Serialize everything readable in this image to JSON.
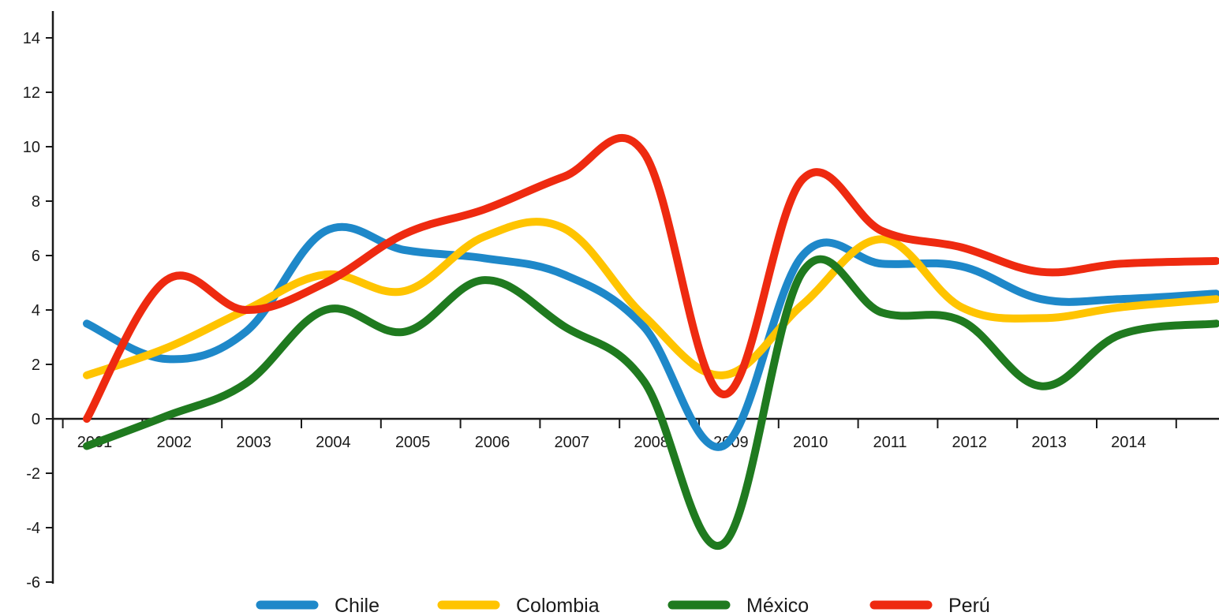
{
  "chart_data": {
    "type": "line",
    "title": "",
    "xlabel": "",
    "ylabel": "",
    "ylim": [
      -6,
      14
    ],
    "yticks": [
      -6,
      -4,
      -2,
      0,
      2,
      4,
      6,
      8,
      10,
      12,
      14
    ],
    "ytick_labels": [
      "-6",
      "-4",
      "-2",
      "0",
      "2",
      "4",
      "6",
      "8",
      "10",
      "12",
      "14"
    ],
    "categories": [
      "2001",
      "2002",
      "2003",
      "2004",
      "2005",
      "2006",
      "2007",
      "2008",
      "2009",
      "2010",
      "2011",
      "2012",
      "2013",
      "2014"
    ],
    "xlim": [
      2001,
      2015.2
    ],
    "grid": false,
    "legend_position": "bottom",
    "series": [
      {
        "name": "Chile",
        "color": "#1e88c9",
        "x": [
          2001,
          2002,
          2003,
          2004,
          2005,
          2006,
          2007,
          2008,
          2009,
          2010,
          2011,
          2012,
          2013,
          2014,
          2015.2
        ],
        "values": [
          3.5,
          2.2,
          3.2,
          6.9,
          6.2,
          5.9,
          5.3,
          3.4,
          -1.0,
          6.0,
          5.7,
          5.6,
          4.4,
          4.4,
          4.6
        ]
      },
      {
        "name": "Colombia",
        "color": "#ffc400",
        "x": [
          2001,
          2002,
          2003,
          2004,
          2005,
          2006,
          2007,
          2008,
          2009,
          2010,
          2011,
          2012,
          2013,
          2014,
          2015.2
        ],
        "values": [
          1.6,
          2.6,
          4.0,
          5.3,
          4.7,
          6.7,
          7.0,
          3.8,
          1.6,
          4.2,
          6.6,
          4.1,
          3.7,
          4.1,
          4.4
        ]
      },
      {
        "name": "México",
        "color": "#1f7a1f",
        "x": [
          2001,
          2002,
          2003,
          2004,
          2005,
          2006,
          2007,
          2008,
          2009,
          2010,
          2011,
          2012,
          2013,
          2014,
          2015.2
        ],
        "values": [
          -1.0,
          0.1,
          1.3,
          4.0,
          3.2,
          5.1,
          3.4,
          1.4,
          -4.6,
          5.4,
          3.9,
          3.6,
          1.2,
          3.1,
          3.5
        ]
      },
      {
        "name": "Perú",
        "color": "#ee2a10",
        "x": [
          2001,
          2002,
          2003,
          2004,
          2005,
          2006,
          2007,
          2008,
          2009,
          2010,
          2011,
          2012,
          2013,
          2014,
          2015.2
        ],
        "values": [
          0.0,
          5.1,
          4.0,
          5.0,
          6.8,
          7.7,
          8.9,
          9.8,
          0.9,
          8.8,
          6.9,
          6.3,
          5.4,
          5.7,
          5.8
        ]
      }
    ]
  }
}
